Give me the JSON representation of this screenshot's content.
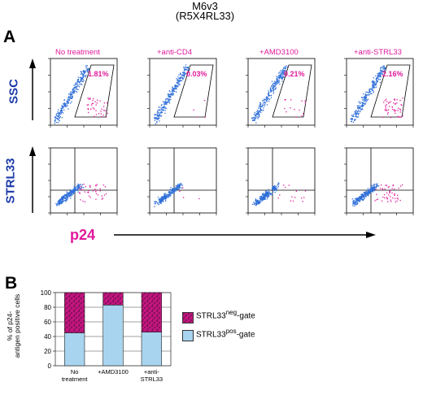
{
  "header": {
    "line1": "M6v3",
    "line2": "(R5X4RL33)"
  },
  "panel_a": {
    "letter": "A",
    "row_labels": [
      "SSC",
      "STRL33"
    ],
    "x_label": "p24",
    "conditions": [
      "No treatment",
      "+anti-CD4",
      "+AMD3100",
      "+anti-STRL33"
    ],
    "gate_percentages": [
      "1.81%",
      "0.03%",
      "0.21%",
      "2.16%"
    ]
  },
  "panel_b": {
    "letter": "B",
    "ylabel_line1": "% of p24-",
    "ylabel_line2": "antigen positive cells",
    "legend": {
      "neg_main": "STRL33",
      "neg_sup": "neg",
      "neg_suffix": "-gate",
      "pos_main": "STRL33",
      "pos_sup": "pos",
      "pos_suffix": "-gate"
    }
  },
  "colors": {
    "magenta": "#e0199b",
    "blue": "#1a39a8",
    "dots_blue": "#2f6fd8",
    "bar_pos": "#a9d4ef",
    "bar_neg": "#c2157f"
  },
  "chart_data": {
    "type": "bar",
    "stacked": true,
    "categories": [
      "No\ntreatment",
      "+AMD3100",
      "+anti-\nSTRL33"
    ],
    "series": [
      {
        "name": "STRL33pos-gate",
        "values": [
          45,
          83,
          46
        ]
      },
      {
        "name": "STRL33neg-gate",
        "values": [
          55,
          17,
          54
        ]
      }
    ],
    "yticks": [
      0,
      20,
      40,
      60,
      80,
      100
    ],
    "ylim": [
      0,
      100
    ],
    "grid": true,
    "legend_position": "right"
  }
}
